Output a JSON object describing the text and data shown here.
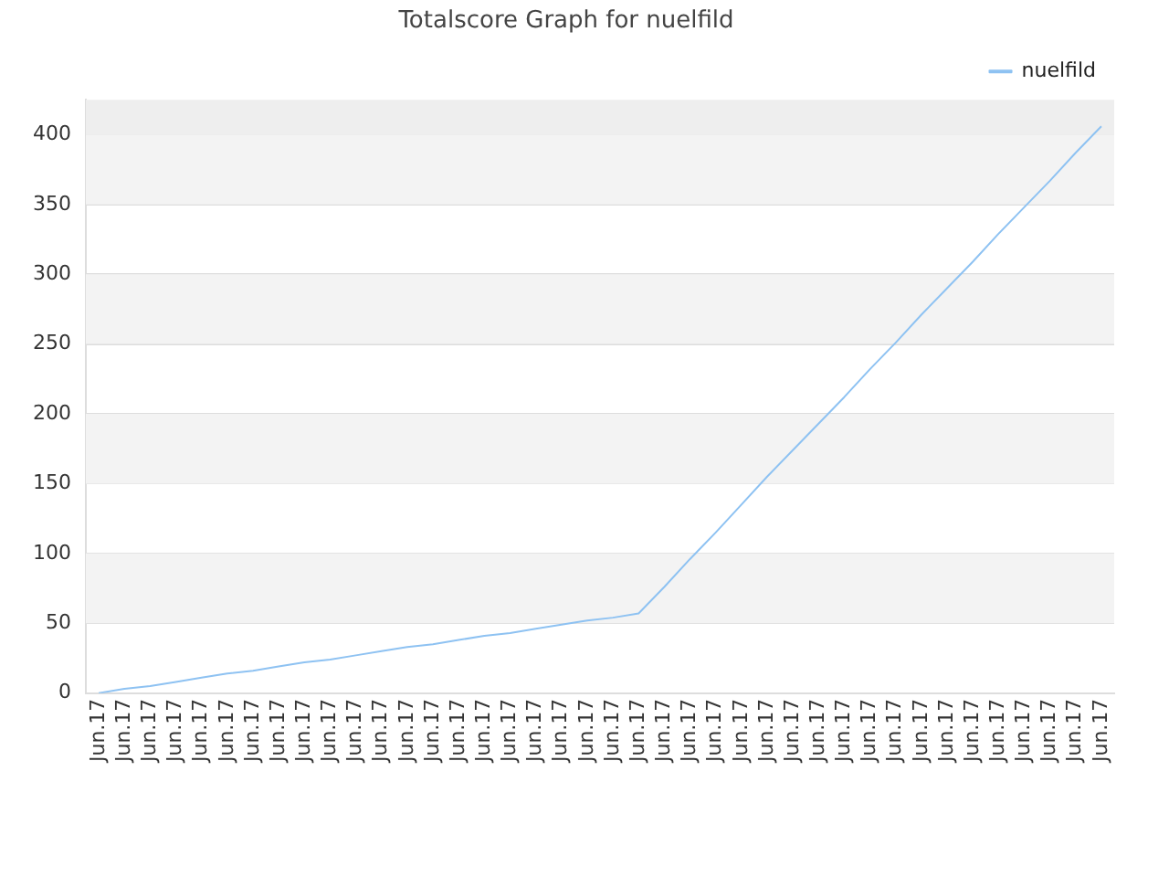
{
  "chart_data": {
    "type": "line",
    "title": "Totalscore Graph for nuelfild",
    "categories": [
      "Jun.17",
      "Jun.17",
      "Jun.17",
      "Jun.17",
      "Jun.17",
      "Jun.17",
      "Jun.17",
      "Jun.17",
      "Jun.17",
      "Jun.17",
      "Jun.17",
      "Jun.17",
      "Jun.17",
      "Jun.17",
      "Jun.17",
      "Jun.17",
      "Jun.17",
      "Jun.17",
      "Jun.17",
      "Jun.17",
      "Jun.17",
      "Jun.17",
      "Jun.17",
      "Jun.17",
      "Jun.17",
      "Jun.17",
      "Jun.17",
      "Jun.17",
      "Jun.17",
      "Jun.17",
      "Jun.17",
      "Jun.17",
      "Jun.17",
      "Jun.17",
      "Jun.17",
      "Jun.17",
      "Jun.17",
      "Jun.17",
      "Jun.17",
      "Jun.17"
    ],
    "series": [
      {
        "name": "nuelfild",
        "color": "#8ec2f2",
        "values": [
          0,
          3,
          5,
          8,
          11,
          14,
          16,
          19,
          22,
          24,
          27,
          30,
          33,
          35,
          38,
          41,
          43,
          46,
          49,
          52,
          54,
          57,
          76,
          96,
          115,
          135,
          155,
          174,
          193,
          212,
          232,
          251,
          271,
          290,
          309,
          329,
          348,
          367,
          387,
          406
        ]
      }
    ],
    "ylim": [
      0,
      425
    ],
    "yticks": [
      0,
      50,
      100,
      150,
      200,
      250,
      300,
      350,
      400
    ],
    "bands": [
      {
        "axis": "y",
        "from": 400,
        "to": 425,
        "color": "#eeeeee"
      }
    ],
    "grid": "y",
    "legend": "top right",
    "marker": "none",
    "line_style": "solid"
  }
}
